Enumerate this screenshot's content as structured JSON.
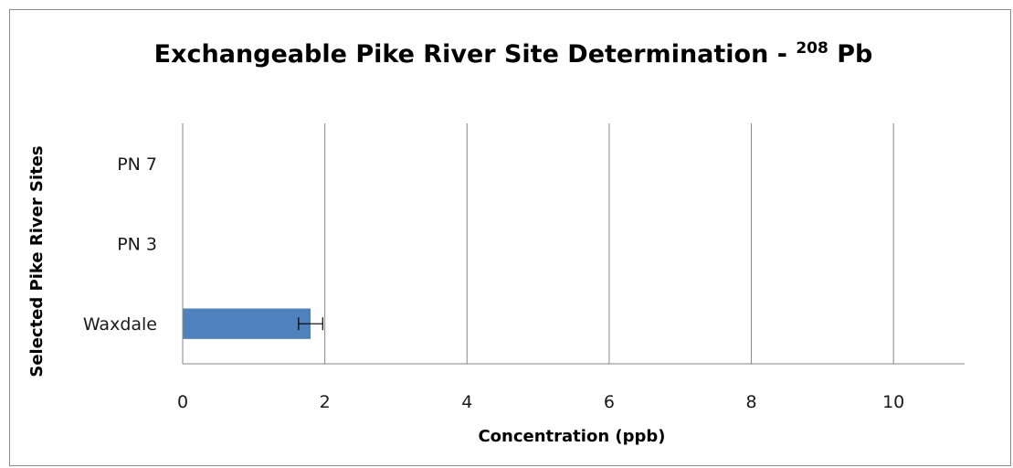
{
  "chart_data": {
    "type": "bar",
    "orientation": "horizontal",
    "title": "Exchangeable Pike River Site Determination - ",
    "title_superscript": "208",
    "title_suffix": " Pb",
    "xlabel": "Concentration (ppb)",
    "ylabel": "Selected Pike River Sites",
    "categories": [
      "Waxdale",
      "PN 3",
      "PN 7"
    ],
    "values": [
      1.8,
      0,
      0
    ],
    "error": [
      0.17,
      0,
      0
    ],
    "xlim": [
      0,
      11
    ],
    "xticks": [
      "0",
      "2",
      "4",
      "6",
      "8",
      "10"
    ],
    "grid": true,
    "bar_color": "#4f81bd",
    "legend": "none"
  }
}
